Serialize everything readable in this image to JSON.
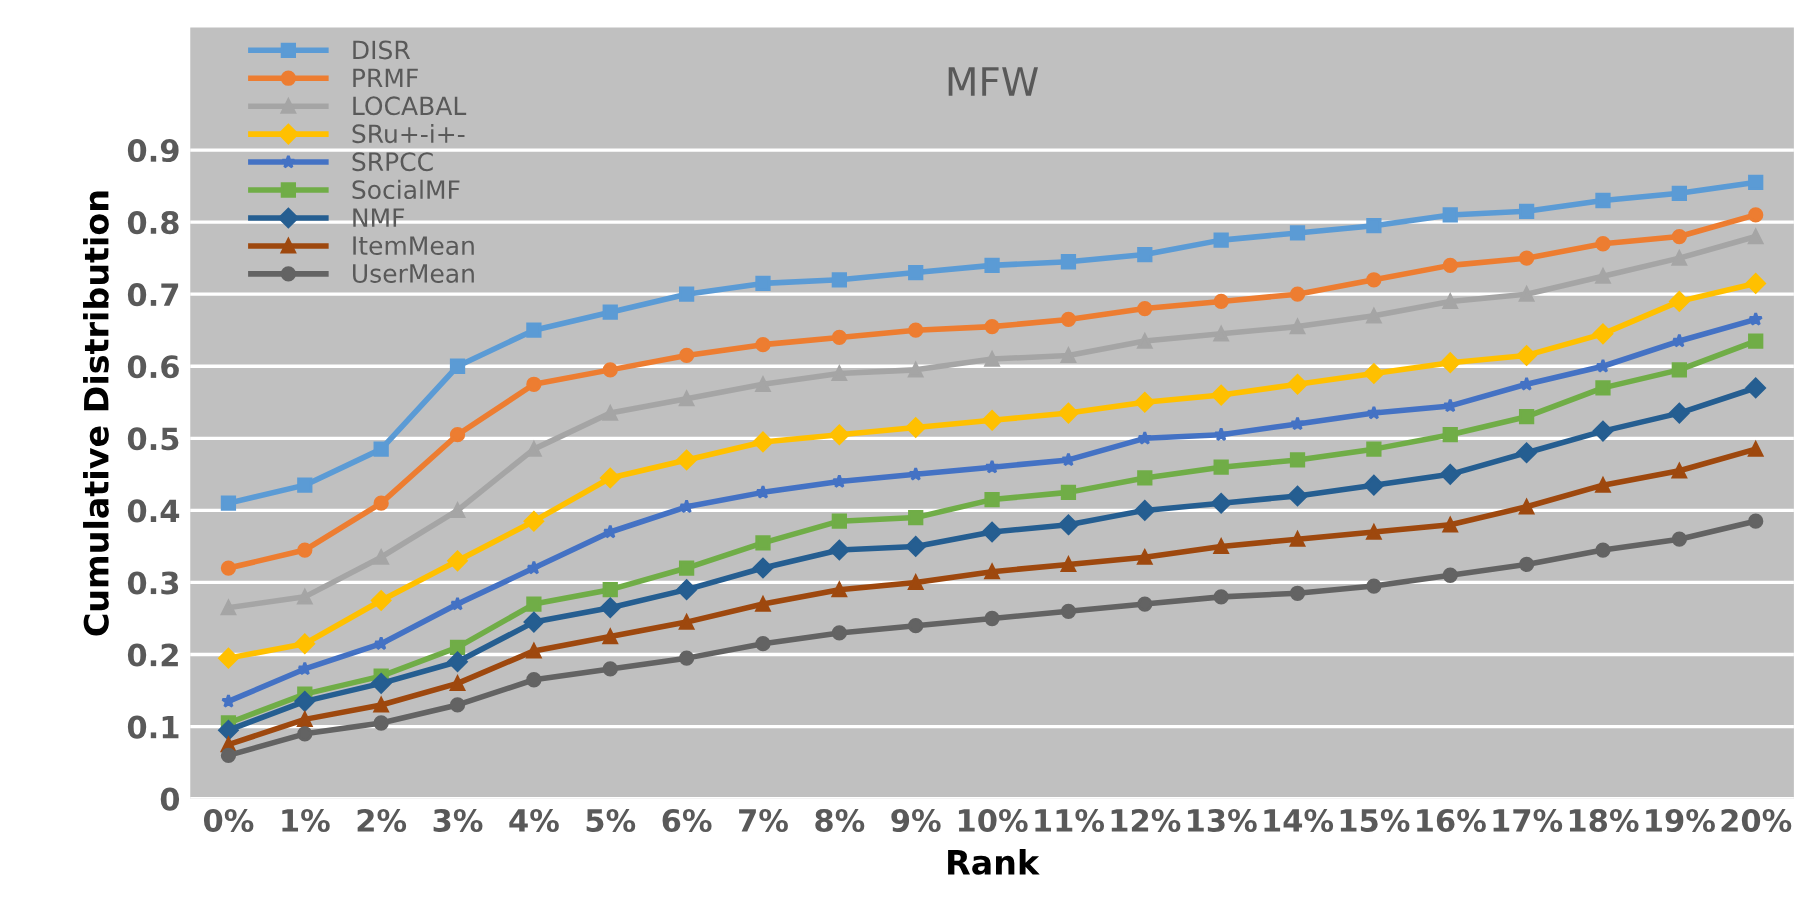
{
  "chart_data": {
    "type": "line",
    "title": "MFW",
    "xlabel": "Rank",
    "ylabel": "Cumulative Distribution",
    "categories": [
      "0%",
      "1%",
      "2%",
      "3%",
      "4%",
      "5%",
      "6%",
      "7%",
      "8%",
      "9%",
      "10%",
      "11%",
      "12%",
      "13%",
      "14%",
      "15%",
      "16%",
      "17%",
      "18%",
      "19%",
      "20%"
    ],
    "series": [
      {
        "name": "DISR",
        "color": "#5b9bd5",
        "marker": "square",
        "values": [
          0.41,
          0.435,
          0.485,
          0.6,
          0.65,
          0.675,
          0.7,
          0.715,
          0.72,
          0.73,
          0.74,
          0.745,
          0.755,
          0.775,
          0.785,
          0.795,
          0.81,
          0.815,
          0.83,
          0.84,
          0.855
        ]
      },
      {
        "name": "PRMF",
        "color": "#ed7d31",
        "marker": "circle",
        "values": [
          0.32,
          0.345,
          0.41,
          0.505,
          0.575,
          0.595,
          0.615,
          0.63,
          0.64,
          0.65,
          0.655,
          0.665,
          0.68,
          0.69,
          0.7,
          0.72,
          0.74,
          0.75,
          0.77,
          0.78,
          0.81
        ]
      },
      {
        "name": "LOCABAL",
        "color": "#a5a5a5",
        "marker": "triangle",
        "values": [
          0.265,
          0.28,
          0.335,
          0.4,
          0.485,
          0.535,
          0.555,
          0.575,
          0.59,
          0.595,
          0.61,
          0.615,
          0.635,
          0.645,
          0.655,
          0.67,
          0.69,
          0.7,
          0.725,
          0.75,
          0.78
        ]
      },
      {
        "name": "SRu+-i+-",
        "color": "#ffc000",
        "marker": "diamond",
        "values": [
          0.195,
          0.215,
          0.275,
          0.33,
          0.385,
          0.445,
          0.47,
          0.495,
          0.505,
          0.515,
          0.525,
          0.535,
          0.55,
          0.56,
          0.575,
          0.59,
          0.605,
          0.615,
          0.645,
          0.69,
          0.715
        ]
      },
      {
        "name": "SRPCC",
        "color": "#4472c4",
        "marker": "star",
        "values": [
          0.135,
          0.18,
          0.215,
          0.27,
          0.32,
          0.37,
          0.405,
          0.425,
          0.44,
          0.45,
          0.46,
          0.47,
          0.5,
          0.505,
          0.52,
          0.535,
          0.545,
          0.575,
          0.6,
          0.635,
          0.665
        ]
      },
      {
        "name": "SocialMF",
        "color": "#70ad47",
        "marker": "square",
        "values": [
          0.105,
          0.145,
          0.17,
          0.21,
          0.27,
          0.29,
          0.32,
          0.355,
          0.385,
          0.39,
          0.415,
          0.425,
          0.445,
          0.46,
          0.47,
          0.485,
          0.505,
          0.53,
          0.57,
          0.595,
          0.635
        ]
      },
      {
        "name": "NMF",
        "color": "#255e91",
        "marker": "diamond",
        "values": [
          0.095,
          0.135,
          0.16,
          0.19,
          0.245,
          0.265,
          0.29,
          0.32,
          0.345,
          0.35,
          0.37,
          0.38,
          0.4,
          0.41,
          0.42,
          0.435,
          0.45,
          0.48,
          0.51,
          0.535,
          0.57
        ]
      },
      {
        "name": "ItemMean",
        "color": "#9e480e",
        "marker": "triangle",
        "values": [
          0.075,
          0.11,
          0.13,
          0.16,
          0.205,
          0.225,
          0.245,
          0.27,
          0.29,
          0.3,
          0.315,
          0.325,
          0.335,
          0.35,
          0.36,
          0.37,
          0.38,
          0.405,
          0.435,
          0.455,
          0.485
        ]
      },
      {
        "name": "UserMean",
        "color": "#636363",
        "marker": "circle",
        "values": [
          0.06,
          0.09,
          0.105,
          0.13,
          0.165,
          0.18,
          0.195,
          0.215,
          0.23,
          0.24,
          0.25,
          0.26,
          0.27,
          0.28,
          0.285,
          0.295,
          0.31,
          0.325,
          0.345,
          0.36,
          0.385
        ]
      }
    ],
    "ylim": [
      0,
      1.07
    ],
    "yticks": [
      0,
      0.1,
      0.2,
      0.3,
      0.4,
      0.5,
      0.6,
      0.7,
      0.8,
      0.9
    ],
    "grid": "y",
    "legend": "top left",
    "line_style": "solid"
  }
}
